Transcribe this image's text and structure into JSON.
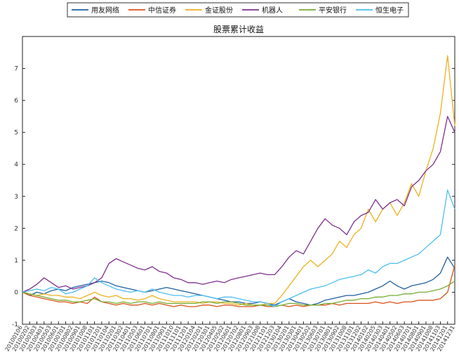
{
  "chart_data": {
    "type": "line",
    "title": "股票累计收益",
    "xlabel": "",
    "ylabel": "",
    "ylim": [
      -1,
      8
    ],
    "yticks": [
      -1,
      0,
      1,
      2,
      3,
      4,
      5,
      6,
      7
    ],
    "grid": false,
    "legend_position": "top",
    "x_ticks": [
      "20100106",
      "20100202",
      "20100303",
      "20100401",
      "20100503",
      "20100601",
      "20100701",
      "20100802",
      "20100901",
      "20101008",
      "20101101",
      "20101201",
      "20110104",
      "20110201",
      "20110302",
      "20110401",
      "20110503",
      "20110601",
      "20110701",
      "20110801",
      "20110901",
      "20111010",
      "20111101",
      "20111201",
      "20120104",
      "20120201",
      "20120301",
      "20120405",
      "20120502",
      "20120601",
      "20120702",
      "20120801",
      "20120903",
      "20121008",
      "20121101",
      "20121203",
      "20130104",
      "20130201",
      "20130301",
      "20130401",
      "20130502",
      "20130603",
      "20130701",
      "20130801",
      "20130902",
      "20131008",
      "20131101",
      "20131202",
      "20140102",
      "20140205",
      "20140303",
      "20140401",
      "20140502",
      "20140603",
      "20140701",
      "20140801",
      "20140901",
      "20141008",
      "20141103",
      "20141201",
      "20141231"
    ],
    "series": [
      {
        "name": "用友网络",
        "color": "#1f5f9e",
        "values": [
          0.0,
          -0.1,
          0.0,
          -0.05,
          0.05,
          0.1,
          0.05,
          0.15,
          0.2,
          0.25,
          0.3,
          0.35,
          0.3,
          0.2,
          0.15,
          0.1,
          0.05,
          0.0,
          0.05,
          0.1,
          0.15,
          0.1,
          0.05,
          0.0,
          -0.05,
          -0.1,
          -0.15,
          -0.2,
          -0.25,
          -0.3,
          -0.3,
          -0.35,
          -0.35,
          -0.3,
          -0.35,
          -0.4,
          -0.3,
          -0.2,
          -0.3,
          -0.35,
          -0.4,
          -0.35,
          -0.25,
          -0.2,
          -0.15,
          -0.1,
          -0.1,
          -0.05,
          0.0,
          0.1,
          0.2,
          0.35,
          0.2,
          0.1,
          0.2,
          0.25,
          0.3,
          0.4,
          0.6,
          1.1,
          0.75
        ]
      },
      {
        "name": "中信证券",
        "color": "#d95319",
        "values": [
          0.0,
          -0.1,
          -0.15,
          -0.2,
          -0.25,
          -0.3,
          -0.3,
          -0.35,
          -0.3,
          -0.35,
          -0.15,
          -0.3,
          -0.35,
          -0.4,
          -0.35,
          -0.4,
          -0.4,
          -0.35,
          -0.4,
          -0.35,
          -0.4,
          -0.45,
          -0.4,
          -0.45,
          -0.45,
          -0.4,
          -0.4,
          -0.45,
          -0.4,
          -0.4,
          -0.45,
          -0.45,
          -0.45,
          -0.4,
          -0.45,
          -0.45,
          -0.4,
          -0.45,
          -0.4,
          -0.45,
          -0.4,
          -0.4,
          -0.4,
          -0.35,
          -0.4,
          -0.35,
          -0.35,
          -0.35,
          -0.35,
          -0.3,
          -0.35,
          -0.3,
          -0.35,
          -0.3,
          -0.3,
          -0.25,
          -0.25,
          -0.25,
          -0.2,
          0.0,
          0.85
        ]
      },
      {
        "name": "金证股份",
        "color": "#edb120",
        "values": [
          0.0,
          -0.05,
          -0.1,
          -0.05,
          -0.1,
          -0.1,
          -0.15,
          -0.15,
          -0.2,
          -0.1,
          0.0,
          -0.1,
          -0.15,
          -0.1,
          -0.2,
          -0.2,
          -0.25,
          -0.2,
          -0.1,
          -0.2,
          -0.25,
          -0.3,
          -0.3,
          -0.3,
          -0.3,
          -0.35,
          -0.3,
          -0.3,
          -0.35,
          -0.35,
          -0.4,
          -0.35,
          -0.4,
          -0.4,
          -0.35,
          -0.35,
          -0.1,
          0.2,
          0.5,
          0.8,
          1.0,
          0.8,
          1.0,
          1.2,
          1.6,
          1.4,
          1.8,
          2.0,
          2.6,
          2.2,
          2.6,
          2.8,
          2.4,
          2.8,
          3.4,
          3.0,
          3.8,
          4.5,
          5.6,
          7.4,
          5.2
        ]
      },
      {
        "name": "机器人",
        "color": "#7e2f8e",
        "values": [
          0.0,
          0.1,
          0.25,
          0.45,
          0.3,
          0.15,
          0.2,
          0.1,
          0.15,
          0.2,
          0.3,
          0.45,
          0.9,
          1.05,
          0.95,
          0.85,
          0.75,
          0.7,
          0.8,
          0.65,
          0.6,
          0.45,
          0.4,
          0.3,
          0.3,
          0.25,
          0.3,
          0.35,
          0.3,
          0.4,
          0.45,
          0.5,
          0.55,
          0.6,
          0.55,
          0.55,
          0.8,
          1.1,
          1.3,
          1.2,
          1.6,
          2.0,
          2.3,
          2.1,
          2.0,
          1.8,
          2.2,
          2.4,
          2.5,
          2.9,
          2.6,
          2.8,
          2.9,
          2.7,
          3.3,
          3.5,
          3.8,
          4.0,
          4.4,
          5.5,
          5.0
        ]
      },
      {
        "name": "平安银行",
        "color": "#77ac30",
        "values": [
          0.0,
          -0.05,
          -0.1,
          -0.15,
          -0.2,
          -0.25,
          -0.25,
          -0.3,
          -0.3,
          -0.25,
          -0.2,
          -0.3,
          -0.3,
          -0.35,
          -0.3,
          -0.35,
          -0.3,
          -0.3,
          -0.35,
          -0.3,
          -0.35,
          -0.35,
          -0.35,
          -0.35,
          -0.35,
          -0.3,
          -0.3,
          -0.35,
          -0.3,
          -0.3,
          -0.35,
          -0.4,
          -0.4,
          -0.4,
          -0.4,
          -0.45,
          -0.4,
          -0.35,
          -0.35,
          -0.4,
          -0.4,
          -0.4,
          -0.35,
          -0.35,
          -0.3,
          -0.25,
          -0.25,
          -0.2,
          -0.2,
          -0.15,
          -0.15,
          -0.1,
          -0.1,
          -0.05,
          -0.05,
          0.0,
          0.0,
          0.05,
          0.1,
          0.2,
          0.35
        ]
      },
      {
        "name": "恒生电子",
        "color": "#4dbeee",
        "values": [
          0.0,
          0.05,
          0.1,
          0.05,
          0.15,
          0.1,
          -0.05,
          0.0,
          0.1,
          0.2,
          0.45,
          0.3,
          0.2,
          0.1,
          0.05,
          0.0,
          0.05,
          0.0,
          0.1,
          0.0,
          -0.05,
          -0.1,
          -0.1,
          -0.15,
          -0.1,
          -0.1,
          -0.15,
          -0.2,
          -0.15,
          -0.15,
          -0.2,
          -0.25,
          -0.3,
          -0.3,
          -0.35,
          -0.45,
          -0.3,
          -0.2,
          -0.1,
          0.0,
          0.1,
          0.15,
          0.2,
          0.3,
          0.4,
          0.45,
          0.5,
          0.55,
          0.7,
          0.6,
          0.8,
          0.9,
          0.9,
          1.0,
          1.1,
          1.2,
          1.4,
          1.6,
          1.8,
          3.2,
          2.6
        ]
      }
    ]
  }
}
